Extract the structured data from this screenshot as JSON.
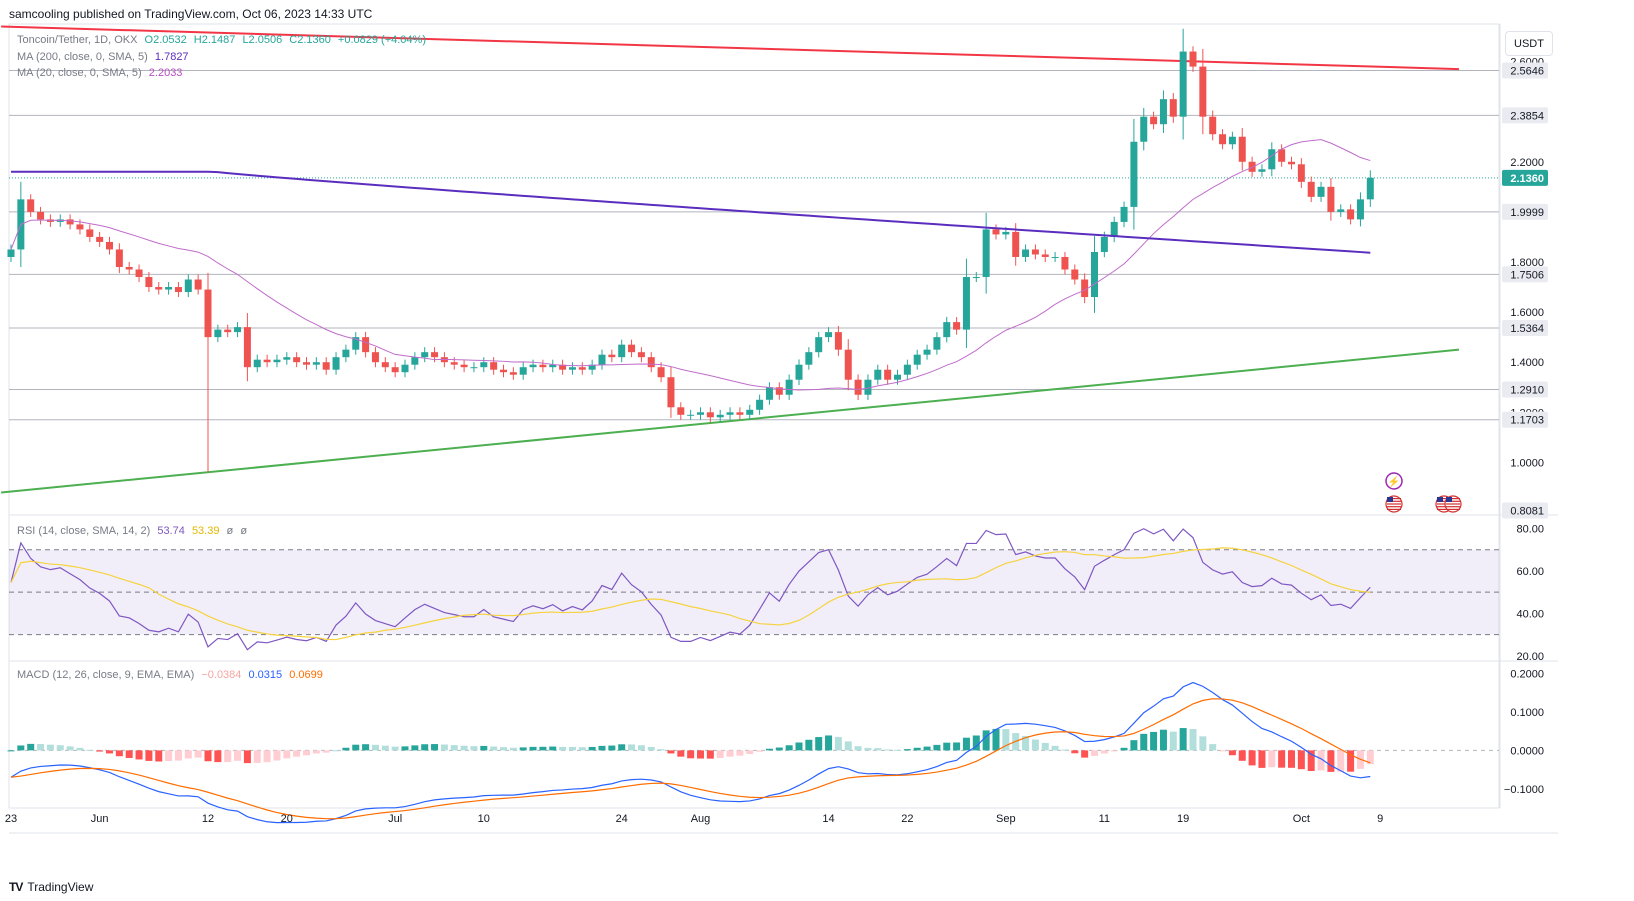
{
  "header": {
    "publish_line": "samcooling published on TradingView.com, Oct 06, 2023 14:33 UTC"
  },
  "footer": {
    "brand": "TradingView",
    "logo_glyph": "TV"
  },
  "unit_button": "USDT",
  "legend": {
    "symbol": "Toncoin/Tether, 1D, OKX",
    "open": "O2.0532",
    "high": "H2.1487",
    "low": "L2.0506",
    "close": "C2.1360",
    "change": "+0.0829 (+4.04%)",
    "ma200": {
      "label": "MA (200, close, 0, SMA, 5)",
      "value": "1.7827",
      "color": "#5b2dbf"
    },
    "ma20": {
      "label": "MA (20, close, 0, SMA, 5)",
      "value": "2.2033",
      "color": "#b74ec2"
    }
  },
  "rsi_legend": {
    "label": "RSI (14, close, SMA, 14, 2)",
    "rsi": "53.74",
    "sma": "53.39",
    "extra1": "ø",
    "extra2": "ø"
  },
  "macd_legend": {
    "label": "MACD (12, 26, close, 9, EMA, EMA)",
    "hist": "−0.0384",
    "macd": "0.0315",
    "signal": "0.0699"
  },
  "colors": {
    "up": "#26a69a",
    "down": "#ef5350",
    "resistance": "#f23645",
    "support": "#4caf50",
    "rsi": "#7e57c2",
    "rsi_sma": "#f5d33f",
    "macd": "#2962ff",
    "signal": "#ff6d00"
  },
  "icons": [
    "flash-icon",
    "us-flag-icon",
    "us-flag-icon",
    "us-flag-icon"
  ],
  "chart_data": {
    "type": "candlestick",
    "price_axis": {
      "ticks": [
        2.6,
        2.2,
        1.8,
        1.6,
        1.4,
        1.2,
        1.0
      ],
      "tick_labels": [
        "2.6000",
        "2.2000",
        "1.8000",
        "1.6000",
        "1.4000",
        "1.2000",
        "1.0000"
      ],
      "range": [
        0.79,
        2.75
      ]
    },
    "highlight_levels": [
      {
        "label": "2.5646",
        "value": 2.5646,
        "kind": "hline"
      },
      {
        "label": "2.3854",
        "value": 2.3854,
        "kind": "hline"
      },
      {
        "label": "2.1360",
        "value": 2.136,
        "kind": "last"
      },
      {
        "label": "1.9999",
        "value": 1.9999,
        "kind": "hline"
      },
      {
        "label": "1.7506",
        "value": 1.7506,
        "kind": "hline"
      },
      {
        "label": "1.5364",
        "value": 1.5364,
        "kind": "hline"
      },
      {
        "label": "1.2910",
        "value": 1.291,
        "kind": "hline"
      },
      {
        "label": "1.1703",
        "value": 1.1703,
        "kind": "hline"
      },
      {
        "label": "0.8081",
        "value": 0.8081,
        "kind": "axis"
      }
    ],
    "x_tick_labels": [
      {
        "label": "23",
        "day": 0
      },
      {
        "label": "Jun",
        "day": 9
      },
      {
        "label": "12",
        "day": 20
      },
      {
        "label": "20",
        "day": 28
      },
      {
        "label": "Jul",
        "day": 39
      },
      {
        "label": "10",
        "day": 48
      },
      {
        "label": "24",
        "day": 62
      },
      {
        "label": "Aug",
        "day": 70
      },
      {
        "label": "14",
        "day": 83
      },
      {
        "label": "22",
        "day": 91
      },
      {
        "label": "Sep",
        "day": 101
      },
      {
        "label": "11",
        "day": 111
      },
      {
        "label": "19",
        "day": 119
      },
      {
        "label": "Oct",
        "day": 131
      },
      {
        "label": "9",
        "day": 139
      }
    ],
    "trendlines": [
      {
        "name": "resistance",
        "from": {
          "day": -1,
          "price": 2.74
        },
        "to": {
          "day": 147,
          "price": 2.57
        }
      },
      {
        "name": "support",
        "from": {
          "day": -1,
          "price": 0.88
        },
        "to": {
          "day": 147,
          "price": 1.45
        }
      }
    ],
    "closes": [
      1.85,
      2.05,
      2.0,
      1.97,
      1.96,
      1.97,
      1.95,
      1.93,
      1.9,
      1.88,
      1.85,
      1.78,
      1.77,
      1.74,
      1.7,
      1.69,
      1.7,
      1.68,
      1.73,
      1.69,
      1.5,
      1.53,
      1.52,
      1.54,
      1.38,
      1.41,
      1.4,
      1.41,
      1.42,
      1.4,
      1.39,
      1.4,
      1.37,
      1.42,
      1.45,
      1.5,
      1.44,
      1.4,
      1.38,
      1.36,
      1.39,
      1.42,
      1.44,
      1.42,
      1.4,
      1.39,
      1.38,
      1.38,
      1.4,
      1.37,
      1.36,
      1.35,
      1.38,
      1.39,
      1.38,
      1.39,
      1.37,
      1.38,
      1.37,
      1.39,
      1.43,
      1.42,
      1.47,
      1.44,
      1.42,
      1.38,
      1.34,
      1.22,
      1.19,
      1.19,
      1.2,
      1.18,
      1.19,
      1.2,
      1.19,
      1.21,
      1.25,
      1.3,
      1.27,
      1.33,
      1.39,
      1.44,
      1.5,
      1.52,
      1.45,
      1.33,
      1.27,
      1.33,
      1.37,
      1.33,
      1.35,
      1.39,
      1.43,
      1.45,
      1.5,
      1.56,
      1.53,
      1.74,
      1.74,
      1.93,
      1.91,
      1.92,
      1.82,
      1.85,
      1.83,
      1.82,
      1.82,
      1.77,
      1.73,
      1.66,
      1.84,
      1.9,
      1.96,
      2.02,
      2.28,
      2.38,
      2.35,
      2.45,
      2.38,
      2.64,
      2.58,
      2.38,
      2.31,
      2.27,
      2.3,
      2.2,
      2.16,
      2.17,
      2.25,
      2.2,
      2.19,
      2.12,
      2.06,
      2.1,
      2.0,
      2.01,
      1.97,
      2.05,
      2.136
    ]
  },
  "rsi_axis": {
    "ticks": [
      80,
      60,
      40,
      20
    ],
    "tick_labels": [
      "80.00",
      "60.00",
      "40.00",
      "20.00"
    ],
    "range": [
      18,
      85
    ]
  },
  "macd_axis": {
    "ticks": [
      0.2,
      0.1,
      0.0,
      -0.1
    ],
    "tick_labels": [
      "0.2000",
      "0.1000",
      "0.0000",
      "−0.1000"
    ],
    "range": [
      -0.15,
      0.23
    ]
  }
}
